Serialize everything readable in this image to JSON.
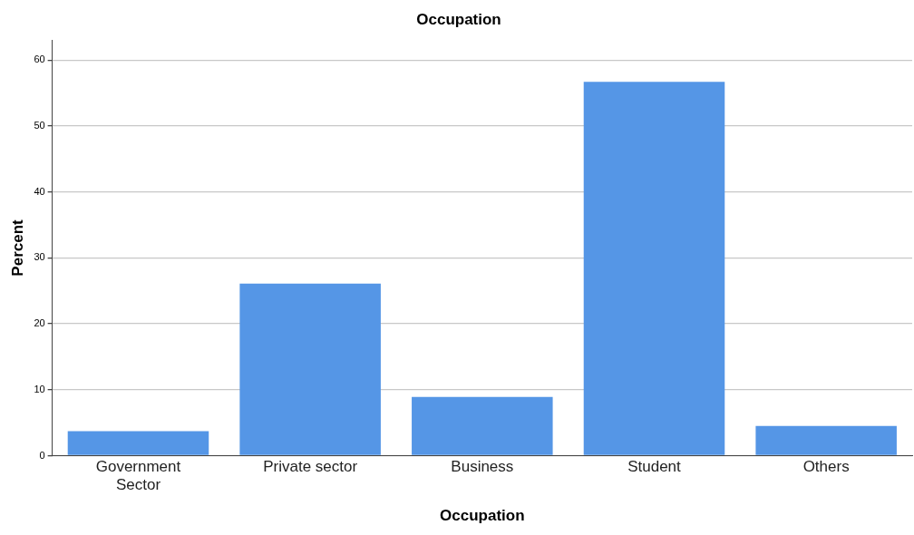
{
  "chart_data": {
    "type": "bar",
    "title": "Occupation",
    "xlabel": "Occupation",
    "ylabel": "Percent",
    "categories": [
      "Government Sector",
      "Private sector",
      "Business",
      "Student",
      "Others"
    ],
    "values": [
      3.7,
      26.1,
      8.9,
      56.7,
      4.5
    ],
    "color": "#5596e6",
    "ylim": [
      0,
      63
    ],
    "yticks": [
      0,
      10,
      20,
      30,
      40,
      50,
      60
    ],
    "grid": "y",
    "legend": false
  }
}
